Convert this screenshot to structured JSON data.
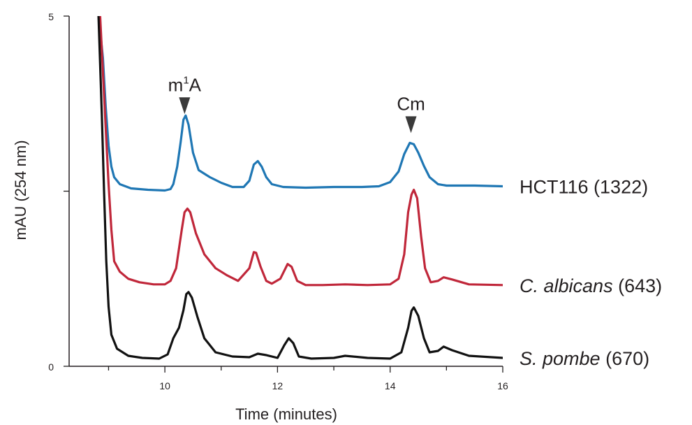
{
  "chart_data": {
    "type": "line",
    "title": "",
    "xlabel": "Time (minutes)",
    "ylabel": "mAU (254 nm)",
    "xlim": [
      8.3,
      16
    ],
    "ylim": [
      0,
      5
    ],
    "x_ticks": [
      10,
      12,
      14,
      16
    ],
    "x_tick_labels": [
      "10",
      "12",
      "14",
      "16"
    ],
    "y_ticks": [
      0,
      2.5,
      5
    ],
    "y_tick_labels": [
      "0",
      "",
      "5"
    ],
    "grid": false,
    "legend": "labels at right end of each trace",
    "colors": {
      "HCT116": "#1f77b4",
      "C_albicans": "#c0273a",
      "S_pombe": "#111111",
      "arrow": "#3a3a3a"
    },
    "annotations": [
      {
        "text_main": "m",
        "text_sup": "1",
        "text_tail": "A",
        "x": 10.35,
        "y_tip": 3.6
      },
      {
        "text_main": "Cm",
        "text_sup": "",
        "text_tail": "",
        "x": 14.37,
        "y_tip": 3.33
      }
    ],
    "series": [
      {
        "name": "HCT116 (1322)",
        "name_main": "HCT116",
        "name_italic": false,
        "name_count": "(1322)",
        "color": "#1f77b4",
        "points": [
          [
            8.82,
            5.05
          ],
          [
            8.9,
            4.4
          ],
          [
            8.95,
            3.7
          ],
          [
            9.0,
            3.15
          ],
          [
            9.05,
            2.85
          ],
          [
            9.1,
            2.7
          ],
          [
            9.2,
            2.6
          ],
          [
            9.4,
            2.54
          ],
          [
            9.7,
            2.52
          ],
          [
            10.0,
            2.51
          ],
          [
            10.1,
            2.53
          ],
          [
            10.15,
            2.6
          ],
          [
            10.22,
            2.85
          ],
          [
            10.28,
            3.2
          ],
          [
            10.33,
            3.52
          ],
          [
            10.37,
            3.58
          ],
          [
            10.42,
            3.45
          ],
          [
            10.5,
            3.05
          ],
          [
            10.6,
            2.8
          ],
          [
            10.8,
            2.7
          ],
          [
            11.0,
            2.62
          ],
          [
            11.2,
            2.56
          ],
          [
            11.4,
            2.56
          ],
          [
            11.5,
            2.65
          ],
          [
            11.58,
            2.88
          ],
          [
            11.65,
            2.93
          ],
          [
            11.72,
            2.85
          ],
          [
            11.8,
            2.7
          ],
          [
            11.9,
            2.6
          ],
          [
            12.1,
            2.56
          ],
          [
            12.5,
            2.55
          ],
          [
            13.0,
            2.56
          ],
          [
            13.5,
            2.56
          ],
          [
            13.8,
            2.57
          ],
          [
            14.0,
            2.63
          ],
          [
            14.15,
            2.78
          ],
          [
            14.25,
            3.03
          ],
          [
            14.35,
            3.19
          ],
          [
            14.42,
            3.17
          ],
          [
            14.5,
            3.05
          ],
          [
            14.6,
            2.86
          ],
          [
            14.7,
            2.7
          ],
          [
            14.85,
            2.6
          ],
          [
            15.0,
            2.58
          ],
          [
            15.5,
            2.58
          ],
          [
            16.0,
            2.57
          ]
        ]
      },
      {
        "name": "C. albicans (643)",
        "name_main": "C. albicans",
        "name_italic": true,
        "name_count": "(643)",
        "color": "#c0273a",
        "points": [
          [
            8.85,
            5.0
          ],
          [
            8.95,
            3.4
          ],
          [
            9.0,
            2.6
          ],
          [
            9.05,
            1.95
          ],
          [
            9.1,
            1.5
          ],
          [
            9.2,
            1.35
          ],
          [
            9.35,
            1.25
          ],
          [
            9.55,
            1.2
          ],
          [
            9.8,
            1.17
          ],
          [
            10.0,
            1.17
          ],
          [
            10.1,
            1.22
          ],
          [
            10.2,
            1.4
          ],
          [
            10.3,
            1.95
          ],
          [
            10.35,
            2.2
          ],
          [
            10.4,
            2.25
          ],
          [
            10.45,
            2.2
          ],
          [
            10.55,
            1.9
          ],
          [
            10.7,
            1.6
          ],
          [
            10.9,
            1.4
          ],
          [
            11.1,
            1.3
          ],
          [
            11.3,
            1.22
          ],
          [
            11.5,
            1.4
          ],
          [
            11.58,
            1.63
          ],
          [
            11.62,
            1.62
          ],
          [
            11.7,
            1.42
          ],
          [
            11.8,
            1.22
          ],
          [
            11.9,
            1.18
          ],
          [
            12.05,
            1.25
          ],
          [
            12.18,
            1.46
          ],
          [
            12.25,
            1.42
          ],
          [
            12.35,
            1.22
          ],
          [
            12.5,
            1.16
          ],
          [
            12.8,
            1.16
          ],
          [
            13.2,
            1.17
          ],
          [
            13.6,
            1.16
          ],
          [
            14.0,
            1.17
          ],
          [
            14.15,
            1.25
          ],
          [
            14.25,
            1.6
          ],
          [
            14.32,
            2.2
          ],
          [
            14.38,
            2.45
          ],
          [
            14.42,
            2.52
          ],
          [
            14.48,
            2.4
          ],
          [
            14.55,
            1.85
          ],
          [
            14.62,
            1.4
          ],
          [
            14.72,
            1.2
          ],
          [
            14.85,
            1.22
          ],
          [
            14.95,
            1.27
          ],
          [
            15.1,
            1.24
          ],
          [
            15.4,
            1.17
          ],
          [
            16.0,
            1.16
          ]
        ]
      },
      {
        "name": "S. pombe (670)",
        "name_main": "S. pombe",
        "name_italic": true,
        "name_count": "(670)",
        "color": "#111111",
        "points": [
          [
            8.82,
            5.05
          ],
          [
            8.88,
            3.6
          ],
          [
            8.92,
            2.5
          ],
          [
            8.96,
            1.5
          ],
          [
            9.0,
            0.85
          ],
          [
            9.05,
            0.45
          ],
          [
            9.15,
            0.25
          ],
          [
            9.35,
            0.15
          ],
          [
            9.6,
            0.12
          ],
          [
            9.9,
            0.11
          ],
          [
            10.05,
            0.17
          ],
          [
            10.15,
            0.4
          ],
          [
            10.25,
            0.55
          ],
          [
            10.33,
            0.8
          ],
          [
            10.38,
            1.03
          ],
          [
            10.42,
            1.06
          ],
          [
            10.48,
            0.98
          ],
          [
            10.58,
            0.7
          ],
          [
            10.7,
            0.4
          ],
          [
            10.9,
            0.2
          ],
          [
            11.2,
            0.14
          ],
          [
            11.5,
            0.13
          ],
          [
            11.65,
            0.18
          ],
          [
            11.8,
            0.16
          ],
          [
            12.0,
            0.12
          ],
          [
            12.12,
            0.3
          ],
          [
            12.2,
            0.4
          ],
          [
            12.28,
            0.33
          ],
          [
            12.38,
            0.14
          ],
          [
            12.6,
            0.11
          ],
          [
            13.0,
            0.12
          ],
          [
            13.2,
            0.15
          ],
          [
            13.6,
            0.12
          ],
          [
            14.0,
            0.11
          ],
          [
            14.2,
            0.2
          ],
          [
            14.32,
            0.55
          ],
          [
            14.38,
            0.79
          ],
          [
            14.42,
            0.84
          ],
          [
            14.5,
            0.72
          ],
          [
            14.6,
            0.4
          ],
          [
            14.7,
            0.2
          ],
          [
            14.85,
            0.22
          ],
          [
            14.95,
            0.28
          ],
          [
            15.1,
            0.23
          ],
          [
            15.4,
            0.15
          ],
          [
            16.0,
            0.12
          ]
        ]
      }
    ]
  }
}
